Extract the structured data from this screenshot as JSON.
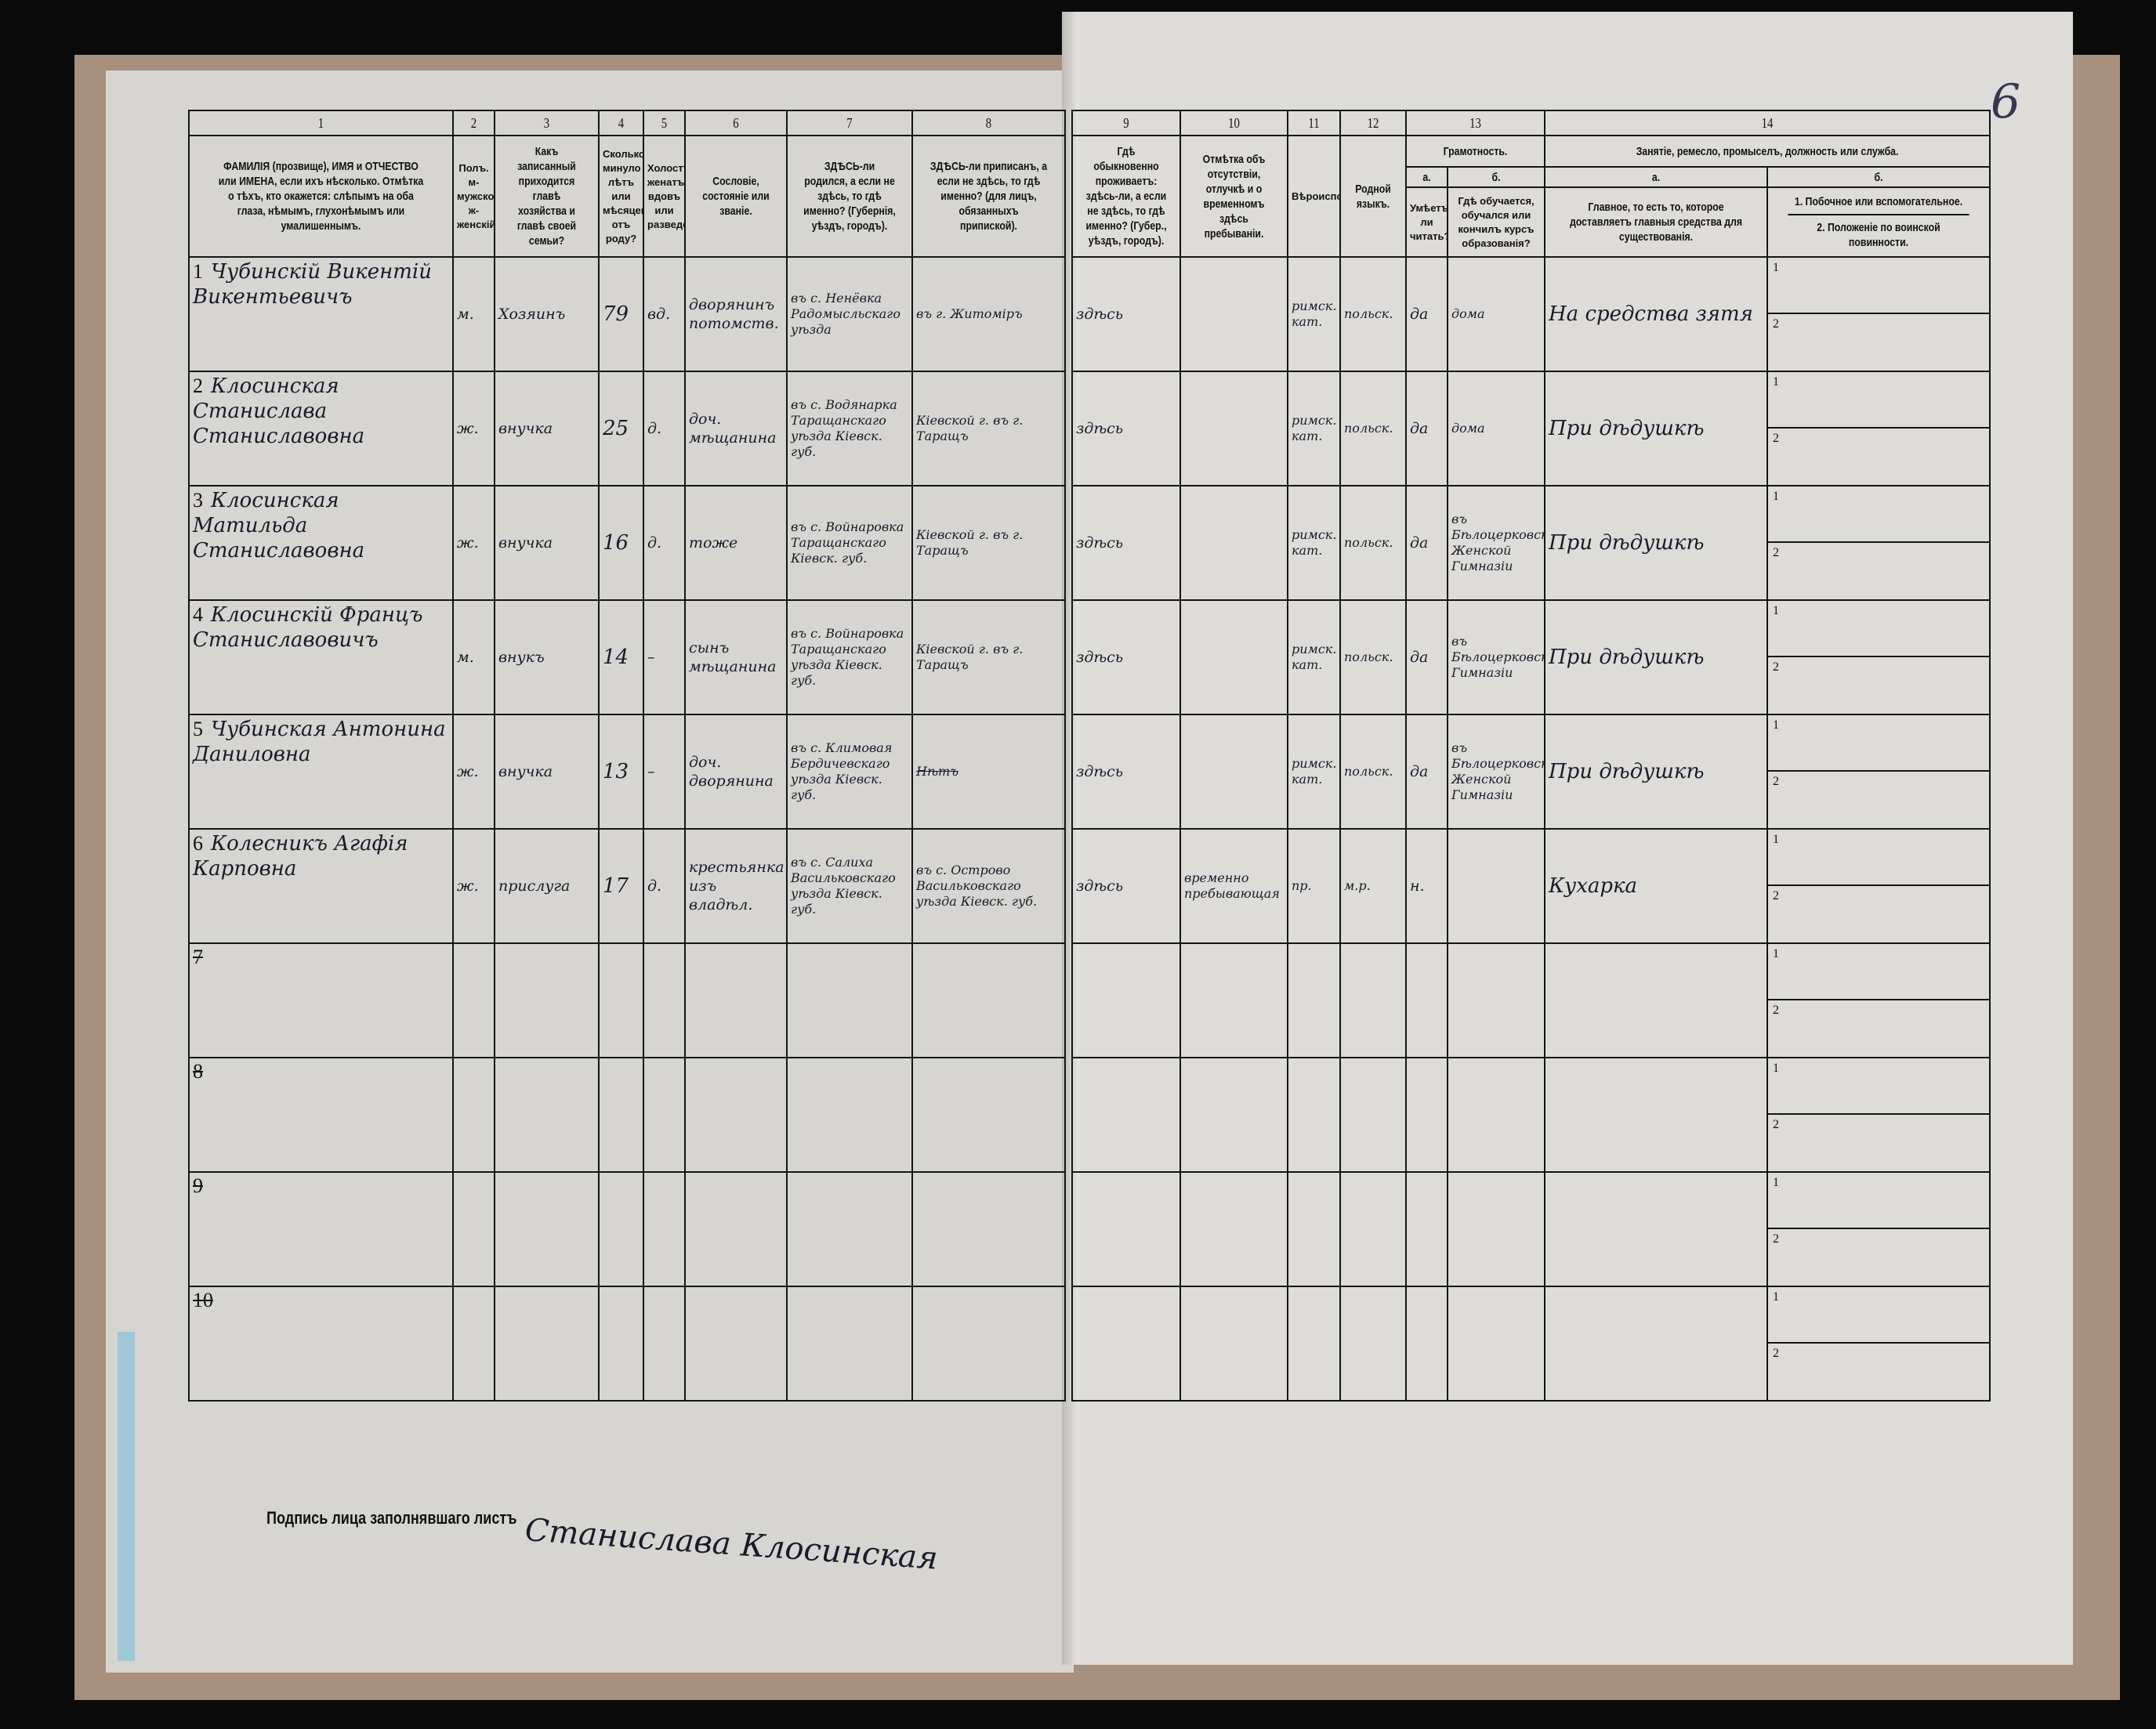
{
  "sheet_number": "6",
  "headers": {
    "c1": {
      "num": "1",
      "text": "ФАМИЛІЯ (прозвище), ИМЯ и ОТЧЕСТВО или ИМЕНА, если ихъ нѣсколько. Отмѣтка о тѣхъ, кто окажется: слѣпымъ на оба глаза, нѣмымъ, глухонѣмымъ или умалишеннымъ."
    },
    "c2": {
      "num": "2",
      "text": "Полъ. м-мужской. ж-женскій."
    },
    "c3": {
      "num": "3",
      "text": "Какъ записанный приходится главѣ хозяйства и главѣ своей семьи?"
    },
    "c4": {
      "num": "4",
      "text": "Сколько минуло лѣтъ или мѣсяцевъ отъ роду?"
    },
    "c5": {
      "num": "5",
      "text": "Холостъ, женатъ, вдовъ или разведенъ."
    },
    "c6": {
      "num": "6",
      "text": "Сословіе, состояніе или званіе."
    },
    "c7": {
      "num": "7",
      "text": "ЗДѢСЬ-ли родился, а если не здѣсь, то гдѣ именно? (Губернія, уѣздъ, городъ)."
    },
    "c8": {
      "num": "8",
      "text": "ЗДѢСЬ-ли приписанъ, а если не здѣсь, то гдѣ именно? (для лицъ, обязанныхъ припиской)."
    },
    "c9": {
      "num": "9",
      "text": "Гдѣ обыкновенно проживаетъ: здѣсь-ли, а если не здѣсь, то гдѣ именно? (Губер., уѣздъ, городъ)."
    },
    "c10": {
      "num": "10",
      "text": "Отмѣтка объ отсутствіи, отлучкѣ и о временномъ здѣсь пребываніи."
    },
    "c11": {
      "num": "11",
      "text": "Вѣроисповѣданіе."
    },
    "c12": {
      "num": "12",
      "text": "Родной языкъ."
    },
    "c13": {
      "num": "13",
      "text": "Грамотность.",
      "a_label": "а.",
      "a_text": "Умѣетъ-ли читать?",
      "b_label": "б.",
      "b_text": "Гдѣ обучается, обучался или кончилъ курсъ образованія?"
    },
    "c14": {
      "num": "14",
      "text": "Занятіе, ремесло, промыселъ, должность или служба.",
      "a_label": "а.",
      "a_text": "Главное, то есть то, которое доставляетъ главныя средства для существованія.",
      "b_label": "б.",
      "b1_text": "1. Побочное или вспомогательное.",
      "b2_text": "2. Положеніе по воинской повинности."
    }
  },
  "rows": [
    {
      "n": "1",
      "name": "Чубинскій Викентій Викентьевичъ",
      "sex": "м.",
      "relation": "Хозяинъ",
      "age": "79",
      "marital": "вд.",
      "estate": "дворянинъ потомств.",
      "born": "въ с. Ненёвка Радомысльскаго уѣзда",
      "registered": "въ г. Житоміръ",
      "residence": "здѣсь",
      "absence": "",
      "religion": "римск. кат.",
      "language": "польск.",
      "literate": "да",
      "education": "дома",
      "occupation": "На средства зятя",
      "sub1": "1",
      "sub2": "2"
    },
    {
      "n": "2",
      "name": "Клосинская Станислава Станиславовна",
      "sex": "ж.",
      "relation": "внучка",
      "age": "25",
      "marital": "д.",
      "estate": "доч. мѣщанина",
      "born": "въ с. Водянарка Таращанскаго уѣзда Кіевск. губ.",
      "registered": "Кіевской г. въ г. Таращъ",
      "residence": "здѣсь",
      "absence": "",
      "religion": "римск. кат.",
      "language": "польск.",
      "literate": "да",
      "education": "дома",
      "occupation": "При дѣдушкѣ",
      "sub1": "1",
      "sub2": "2"
    },
    {
      "n": "3",
      "name": "Клосинская Матильда Станиславовна",
      "sex": "ж.",
      "relation": "внучка",
      "age": "16",
      "marital": "д.",
      "estate": "тоже",
      "born": "въ с. Войнаровка Таращанскаго Кіевск. губ.",
      "registered": "Кіевской г. въ г. Таращъ",
      "residence": "здѣсь",
      "absence": "",
      "religion": "римск. кат.",
      "language": "польск.",
      "literate": "да",
      "education": "въ Бѣлоцерковской Женской Гимназіи",
      "occupation": "При дѣдушкѣ",
      "sub1": "1",
      "sub2": "2"
    },
    {
      "n": "4",
      "name": "Клосинскій Францъ Станиславовичъ",
      "sex": "м.",
      "relation": "внукъ",
      "age": "14",
      "marital": "–",
      "estate": "сынъ мѣщанина",
      "born": "въ с. Войнаровка Таращанскаго уѣзда Кіевск. губ.",
      "registered": "Кіевской г. въ г. Таращъ",
      "residence": "здѣсь",
      "absence": "",
      "religion": "римск. кат.",
      "language": "польск.",
      "literate": "да",
      "education": "въ Бѣлоцерковской Гимназіи",
      "occupation": "При дѣдушкѣ",
      "sub1": "1",
      "sub2": "2"
    },
    {
      "n": "5",
      "name": "Чубинская Антонина Даниловна",
      "sex": "ж.",
      "relation": "внучка",
      "age": "13",
      "marital": "–",
      "estate": "доч. дворянина",
      "born": "въ с. Климовая Бердичевскаго уѣзда Кіевск. губ.",
      "registered": "Нѣтъ",
      "registered_struck": true,
      "residence": "здѣсь",
      "absence": "",
      "religion": "римск. кат.",
      "language": "польск.",
      "literate": "да",
      "education": "въ Бѣлоцерковской Женской Гимназіи",
      "occupation": "При дѣдушкѣ",
      "sub1": "1",
      "sub2": "2"
    },
    {
      "n": "6",
      "name": "Колесникъ Агафія Карповна",
      "sex": "ж.",
      "relation": "прислуга",
      "age": "17",
      "marital": "д.",
      "estate": "крестьянка изъ владѣл.",
      "born": "въ с. Салиха Васильковскаго уѣзда Кіевск. губ.",
      "registered": "въ с. Острово Васильковскаго уѣзда Кіевск. губ.",
      "residence": "здѣсь",
      "absence": "временно пребывающая",
      "religion": "пр.",
      "language": "м.р.",
      "literate": "н.",
      "education": "",
      "occupation": "Кухарка",
      "sub1": "1",
      "sub2": "2"
    },
    {
      "n": "7",
      "struck": true,
      "sub1": "1",
      "sub2": "2"
    },
    {
      "n": "8",
      "struck": true,
      "sub1": "1",
      "sub2": "2"
    },
    {
      "n": "9",
      "struck": true,
      "sub1": "1",
      "sub2": "2"
    },
    {
      "n": "10",
      "struck": true,
      "sub1": "1",
      "sub2": "2"
    }
  ],
  "signature": {
    "label": "Подпись лица заполнявшаго листъ",
    "value": "Станислава Клосинская"
  }
}
